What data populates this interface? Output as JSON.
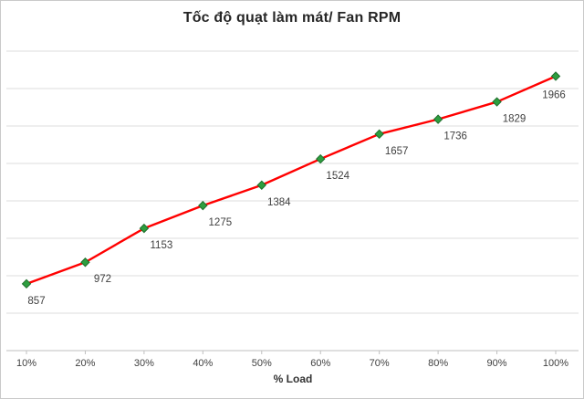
{
  "chart_data": {
    "type": "line",
    "title": "Tốc độ quạt làm mát/ Fan RPM",
    "xlabel": "% Load",
    "ylabel": "",
    "categories": [
      "10%",
      "20%",
      "30%",
      "40%",
      "50%",
      "60%",
      "70%",
      "80%",
      "90%",
      "100%"
    ],
    "values": [
      857,
      972,
      1153,
      1275,
      1384,
      1524,
      1657,
      1736,
      1829,
      1966
    ],
    "ylim": [
      500,
      2100
    ],
    "y_major_unit": 200,
    "grid": "horizontal",
    "y_tick_labels_visible": false,
    "data_labels": true,
    "legend": "none",
    "colors": {
      "line": "#ff0000",
      "marker_fill": "#2e9e3f",
      "marker_stroke": "#1f6e2c",
      "gridline": "#dcdcdc",
      "axis": "#bfbfbf",
      "title_text": "#262626",
      "label_text": "#3f3f3f",
      "tick_text": "#404040",
      "border": "#c9c9c9",
      "background": "#ffffff"
    }
  }
}
